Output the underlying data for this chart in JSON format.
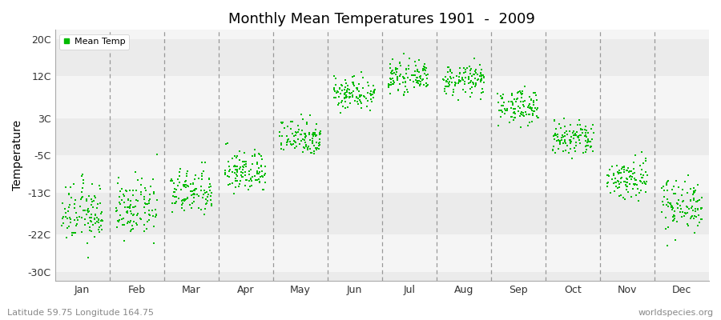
{
  "title": "Monthly Mean Temperatures 1901  -  2009",
  "ylabel": "Temperature",
  "subtitle_left": "Latitude 59.75 Longitude 164.75",
  "subtitle_right": "worldspecies.org",
  "yticks": [
    -30,
    -22,
    -13,
    -5,
    3,
    12,
    20
  ],
  "ytick_labels": [
    "-30C",
    "-22C",
    "-13C",
    "-5C",
    "3C",
    "12C",
    "20C"
  ],
  "ylim": [
    -32,
    22
  ],
  "months": [
    "Jan",
    "Feb",
    "Mar",
    "Apr",
    "May",
    "Jun",
    "Jul",
    "Aug",
    "Sep",
    "Oct",
    "Nov",
    "Dec"
  ],
  "mean_temps": [
    -17.5,
    -16.5,
    -13.0,
    -8.5,
    -1.0,
    8.5,
    11.8,
    11.2,
    5.5,
    -1.5,
    -10.0,
    -15.5
  ],
  "std_temps": [
    3.2,
    3.0,
    2.5,
    2.3,
    2.0,
    1.8,
    1.5,
    1.6,
    1.8,
    2.0,
    2.3,
    2.8
  ],
  "n_years": 109,
  "marker_color": "#00BB00",
  "marker_size": 3,
  "bg_color": "#FFFFFF",
  "band_colors_h": [
    "#EBEBEB",
    "#F5F5F5"
  ],
  "dashed_line_color": "#999999",
  "legend_label": "Mean Temp",
  "title_fontsize": 13,
  "axis_fontsize": 9,
  "subtitle_fontsize": 8
}
